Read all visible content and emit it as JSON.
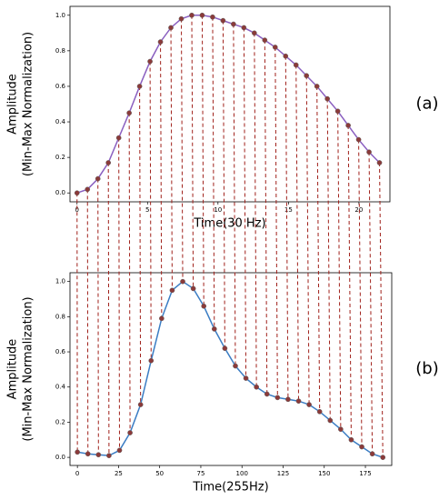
{
  "chart_data": [
    {
      "type": "line",
      "panel_label": "(a)",
      "xlabel": "Time(30 Hz)",
      "ylabel": [
        "Amplitude",
        "(Min-Max Normalization)"
      ],
      "x": [
        0,
        0.74,
        1.48,
        2.22,
        2.96,
        3.7,
        4.44,
        5.18,
        5.92,
        6.66,
        7.4,
        8.14,
        8.88,
        9.62,
        10.36,
        11.1,
        11.84,
        12.58,
        13.32,
        14.06,
        14.8,
        15.54,
        16.28,
        17.02,
        17.76,
        18.5,
        19.24,
        19.98,
        20.72,
        21.46
      ],
      "values": [
        0.0,
        0.02,
        0.08,
        0.17,
        0.31,
        0.45,
        0.6,
        0.74,
        0.85,
        0.93,
        0.98,
        1.0,
        1.0,
        0.99,
        0.97,
        0.95,
        0.93,
        0.9,
        0.86,
        0.82,
        0.77,
        0.72,
        0.66,
        0.6,
        0.53,
        0.46,
        0.38,
        0.3,
        0.23,
        0.17
      ],
      "color": "#8a5fc0",
      "marker_color": "#8b3a3a",
      "xlim": [
        -0.5,
        22.2
      ],
      "ylim": [
        -0.05,
        1.05
      ],
      "xticks": [
        0,
        5,
        10,
        15,
        20
      ],
      "yticks": [
        {
          "value": 0,
          "label": "0.0"
        },
        0.2,
        0.4,
        0.6,
        0.8,
        {
          "value": 1,
          "label": "1.0"
        }
      ]
    },
    {
      "type": "line",
      "panel_label": "(b)",
      "xlabel": "Time(255Hz)",
      "ylabel": [
        "Amplitude",
        "(Min-Max Normalization)"
      ],
      "x": [
        0,
        6.4,
        12.8,
        19.2,
        25.6,
        32,
        38.4,
        44.8,
        51.2,
        57.6,
        64,
        70.4,
        76.8,
        83.2,
        89.6,
        96,
        102.4,
        108.8,
        115.2,
        121.6,
        128,
        134.4,
        140.8,
        147.2,
        153.6,
        160,
        166.4,
        172.8,
        179.2,
        185.6
      ],
      "values": [
        0.03,
        0.02,
        0.015,
        0.01,
        0.04,
        0.14,
        0.3,
        0.55,
        0.79,
        0.95,
        1.0,
        0.96,
        0.86,
        0.73,
        0.62,
        0.52,
        0.45,
        0.4,
        0.36,
        0.34,
        0.33,
        0.32,
        0.3,
        0.26,
        0.21,
        0.16,
        0.1,
        0.06,
        0.02,
        0.0
      ],
      "color": "#3b7dc4",
      "marker_color": "#8b3a3a",
      "xlim": [
        -4.5,
        191
      ],
      "ylim": [
        -0.046,
        1.05
      ],
      "xticks": [
        0,
        25,
        50,
        75,
        100,
        125,
        150,
        175
      ],
      "yticks": [
        {
          "value": 0,
          "label": "0.0"
        },
        0.2,
        0.4,
        0.6,
        0.8,
        {
          "value": 1,
          "label": "1.0"
        }
      ]
    }
  ]
}
